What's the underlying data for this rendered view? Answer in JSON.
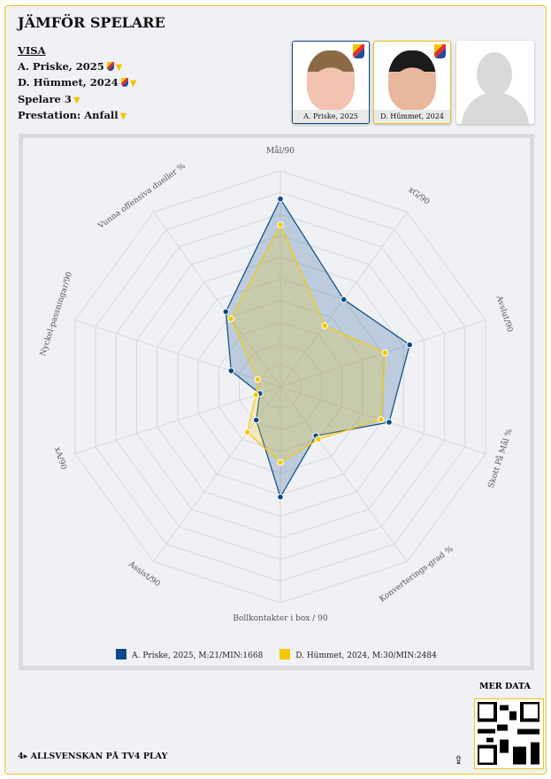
{
  "title": "JÄMFÖR SPELARE",
  "controls": {
    "visa": "VISA",
    "player1": "A. Priske, 2025",
    "player2": "D. Hümmet, 2024",
    "player3": "Spelare 3",
    "performance": "Prestation: Anfall"
  },
  "cards": [
    {
      "label": "A. Priske, 2025"
    },
    {
      "label": "D. Hümmet, 2024"
    },
    {
      "label": ""
    }
  ],
  "colors": {
    "player1": "#0b4a86",
    "player2": "#f5c800",
    "accent": "#f0c419"
  },
  "chart_data": {
    "type": "radar",
    "axes": [
      "Mål/90",
      "xG/90",
      "Avslut/90",
      "Skott På Mål %",
      "Konverterings-grad %",
      "Bollkontakter i box / 90",
      "Assist/90",
      "xA/90",
      "Nyckel-passningar/90",
      "Vunna offensiva dueller %"
    ],
    "range": [
      0,
      100
    ],
    "rings": 10,
    "series": [
      {
        "name": "A. Priske, 2025, M:21/MIN:1668",
        "values": [
          87,
          50,
          63,
          53,
          28,
          51,
          19,
          10,
          24,
          43
        ]
      },
      {
        "name": "D. Hümmet, 2024, M:30/MIN:2484",
        "values": [
          75,
          35,
          51,
          49,
          30,
          35,
          26,
          12,
          11,
          39
        ]
      }
    ]
  },
  "footer": {
    "brand": "4▸ ALLSVENSKAN PÅ TV4 PLAY",
    "mer_data": "MER DATA"
  }
}
